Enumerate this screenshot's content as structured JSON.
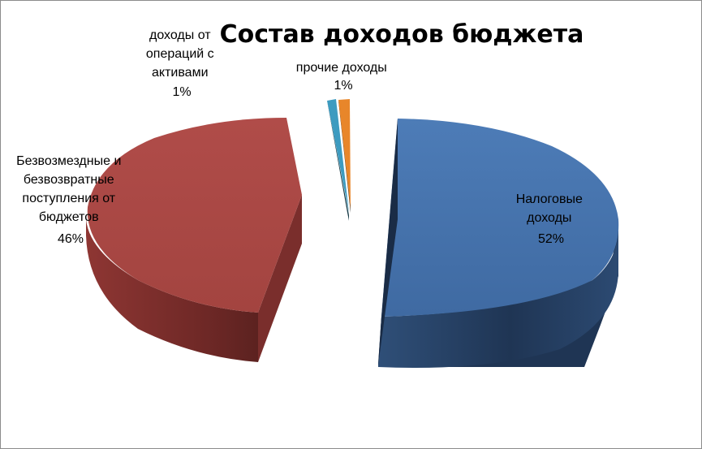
{
  "chart_data": {
    "type": "pie",
    "title": "Состав доходов бюджета",
    "three_d": true,
    "exploded": true,
    "legend": "none",
    "slices": [
      {
        "name": "Налоговые доходы",
        "label_lines": [
          "Налоговые",
          "доходы"
        ],
        "value": 52,
        "percent_label": "52%",
        "color": "#4572A7"
      },
      {
        "name": "Безвозмездные и безвозвратные поступления от бюджетов",
        "label_lines": [
          "Безвозмездные и",
          "безвозвратные",
          "поступления от",
          "бюджетов"
        ],
        "value": 46,
        "percent_label": "46%",
        "color": "#AA4643"
      },
      {
        "name": "доходы от операций с активами",
        "label_lines": [
          "доходы от",
          "операций с",
          "активами"
        ],
        "value": 1,
        "percent_label": "1%",
        "color": "#3D9BC0"
      },
      {
        "name": "прочие доходы",
        "label_lines": [
          "прочие доходы"
        ],
        "value": 1,
        "percent_label": "1%",
        "color": "#E8862A"
      }
    ]
  }
}
